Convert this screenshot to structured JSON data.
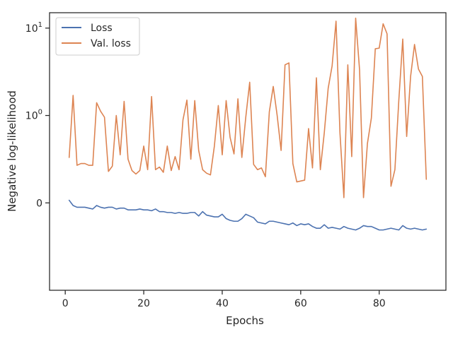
{
  "chart_data": {
    "type": "line",
    "xlabel": "Epochs",
    "ylabel": "Negative log-likelihood",
    "yscale": "symlog",
    "linthresh": 1,
    "xlim": [
      -4,
      97
    ],
    "ylim": [
      -1,
      15
    ],
    "xticks": [
      0,
      20,
      40,
      60,
      80
    ],
    "yticks": [
      {
        "value": 0,
        "label": "0"
      },
      {
        "value": 1,
        "label": "10",
        "exp": "0"
      },
      {
        "value": 10,
        "label": "10",
        "exp": "1"
      }
    ],
    "legend_position": "top-left",
    "grid": false,
    "series": [
      {
        "name": "Loss",
        "color": "#4c72b0",
        "x": [
          1,
          2,
          3,
          4,
          5,
          6,
          7,
          8,
          9,
          10,
          11,
          12,
          13,
          14,
          15,
          16,
          17,
          18,
          19,
          20,
          21,
          22,
          23,
          24,
          25,
          26,
          27,
          28,
          29,
          30,
          31,
          32,
          33,
          34,
          35,
          36,
          37,
          38,
          39,
          40,
          41,
          42,
          43,
          44,
          45,
          46,
          47,
          48,
          49,
          50,
          51,
          52,
          53,
          54,
          55,
          56,
          57,
          58,
          59,
          60,
          61,
          62,
          63,
          64,
          65,
          66,
          67,
          68,
          69,
          70,
          71,
          72,
          73,
          74,
          75,
          76,
          77,
          78,
          79,
          80,
          81,
          82,
          83,
          84,
          85,
          86,
          87,
          88,
          89,
          90,
          91,
          92
        ],
        "y": [
          0.03,
          -0.03,
          -0.05,
          -0.05,
          -0.05,
          -0.06,
          -0.07,
          -0.03,
          -0.05,
          -0.06,
          -0.05,
          -0.05,
          -0.07,
          -0.06,
          -0.06,
          -0.08,
          -0.08,
          -0.08,
          -0.07,
          -0.08,
          -0.08,
          -0.09,
          -0.07,
          -0.1,
          -0.1,
          -0.11,
          -0.11,
          -0.12,
          -0.11,
          -0.12,
          -0.12,
          -0.11,
          -0.11,
          -0.15,
          -0.1,
          -0.14,
          -0.15,
          -0.16,
          -0.16,
          -0.13,
          -0.18,
          -0.2,
          -0.21,
          -0.21,
          -0.18,
          -0.13,
          -0.15,
          -0.17,
          -0.22,
          -0.23,
          -0.24,
          -0.21,
          -0.21,
          -0.22,
          -0.23,
          -0.24,
          -0.25,
          -0.23,
          -0.26,
          -0.24,
          -0.25,
          -0.24,
          -0.27,
          -0.29,
          -0.29,
          -0.25,
          -0.29,
          -0.28,
          -0.29,
          -0.3,
          -0.27,
          -0.29,
          -0.3,
          -0.31,
          -0.29,
          -0.26,
          -0.27,
          -0.27,
          -0.29,
          -0.31,
          -0.31,
          -0.3,
          -0.29,
          -0.3,
          -0.31,
          -0.26,
          -0.29,
          -0.3,
          -0.29,
          -0.3,
          -0.31,
          -0.3
        ]
      },
      {
        "name": "Val. loss",
        "color": "#dd8452",
        "x": [
          1,
          2,
          3,
          4,
          5,
          6,
          7,
          8,
          9,
          10,
          11,
          12,
          13,
          14,
          15,
          16,
          17,
          18,
          19,
          20,
          21,
          22,
          23,
          24,
          25,
          26,
          27,
          28,
          29,
          30,
          31,
          32,
          33,
          34,
          35,
          36,
          37,
          38,
          39,
          40,
          41,
          42,
          43,
          44,
          45,
          46,
          47,
          48,
          49,
          50,
          51,
          52,
          53,
          54,
          55,
          56,
          57,
          58,
          59,
          60,
          61,
          62,
          63,
          64,
          65,
          66,
          67,
          68,
          69,
          70,
          71,
          72,
          73,
          74,
          75,
          76,
          77,
          78,
          79,
          80,
          81,
          82,
          83,
          84,
          85,
          86,
          87,
          88,
          89,
          90,
          91,
          92
        ],
        "y": [
          0.52,
          1.7,
          0.43,
          0.45,
          0.45,
          0.43,
          0.43,
          1.4,
          1.12,
          0.98,
          0.36,
          0.42,
          1.0,
          0.55,
          1.45,
          0.5,
          0.37,
          0.33,
          0.37,
          0.65,
          0.38,
          1.65,
          0.38,
          0.41,
          0.35,
          0.65,
          0.37,
          0.53,
          0.38,
          0.95,
          1.5,
          0.5,
          1.48,
          0.6,
          0.38,
          0.34,
          0.32,
          0.65,
          1.3,
          0.55,
          1.48,
          0.75,
          0.56,
          1.55,
          0.52,
          0.98,
          2.4,
          0.44,
          0.38,
          0.4,
          0.3,
          1.1,
          2.15,
          1.0,
          0.6,
          3.8,
          4.0,
          0.45,
          0.24,
          0.25,
          0.26,
          0.85,
          0.4,
          2.7,
          0.38,
          0.8,
          2.05,
          3.7,
          12.0,
          0.8,
          0.06,
          3.8,
          0.53,
          13.0,
          3.3,
          0.06,
          0.68,
          0.97,
          5.8,
          5.9,
          11.2,
          8.6,
          0.19,
          0.38,
          1.5,
          7.5,
          0.76,
          2.8,
          6.5,
          3.4,
          2.8,
          0.27
        ]
      }
    ]
  }
}
